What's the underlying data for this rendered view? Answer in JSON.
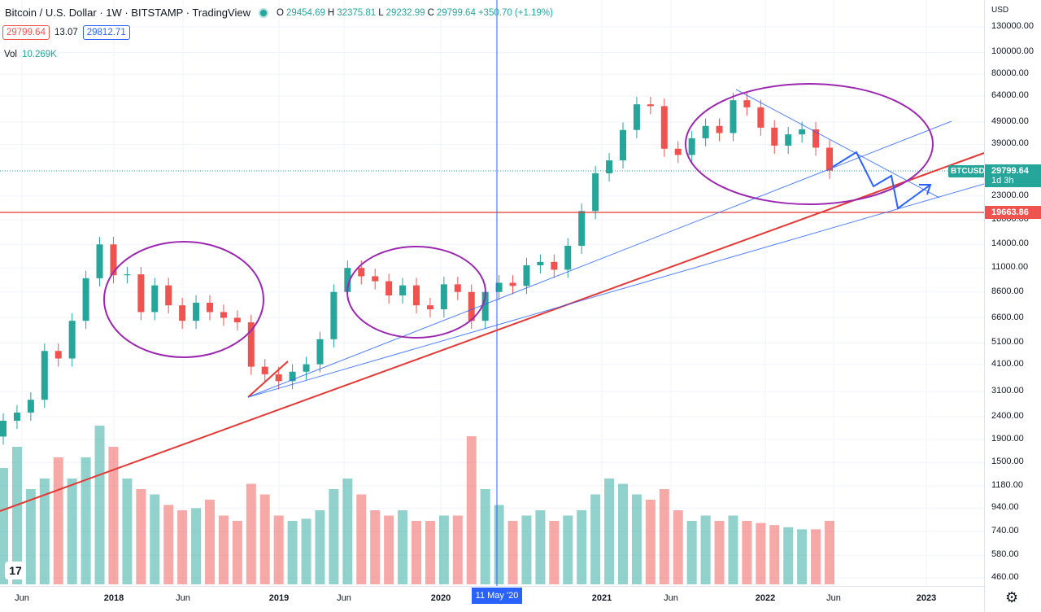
{
  "header": {
    "title": "Bitcoin / U.S. Dollar · 1W · BITSTAMP · TradingView",
    "ohlc": {
      "o_label": "O",
      "o": "29454.69",
      "h_label": "H",
      "h": "32375.81",
      "l_label": "L",
      "l": "29232.99",
      "c_label": "C",
      "c": "29799.64",
      "change": "+350.70 (+1.19%)"
    },
    "sell_price": "29799.64",
    "spread": "13.07",
    "buy_price": "29812.71",
    "vol_label": "Vol",
    "vol_value": "10.269K"
  },
  "price_axis": {
    "currency": "USD",
    "ticks": [
      "130000.00",
      "100000.00",
      "80000.00",
      "64000.00",
      "49000.00",
      "39000.00",
      "23000.00",
      "18000.00",
      "14000.00",
      "11000.00",
      "8600.00",
      "6600.00",
      "5100.00",
      "4100.00",
      "3100.00",
      "2400.00",
      "1900.00",
      "1500.00",
      "1180.00",
      "940.00",
      "740.00",
      "580.00",
      "460.00"
    ],
    "last_price": "29799.64",
    "last_countdown": "1d 3h",
    "level_price": "19663.86",
    "symbol_label": "BTCUSD"
  },
  "time_axis": {
    "ticks": [
      "Jun",
      "2018",
      "Jun",
      "2019",
      "Jun",
      "2020",
      "2021",
      "Jun",
      "2022",
      "Jun",
      "2023"
    ],
    "marker": "11 May '20"
  },
  "colors": {
    "up": "#26a69a",
    "down": "#ef5350",
    "trend_red": "#e53935",
    "trend_blue": "#2962ff",
    "circle": "#9c27b0"
  },
  "icons": {
    "logo": "tradingview-logo-icon",
    "settings": "gear-icon"
  },
  "chart_data": {
    "type": "candlestick",
    "ylim": [
      420,
      150000
    ],
    "y_scale": "log",
    "x": [
      "2017-05",
      "2017-06",
      "2017-07",
      "2017-08",
      "2017-09",
      "2017-10",
      "2017-11",
      "2017-12",
      "2018-01",
      "2018-02",
      "2018-03",
      "2018-04",
      "2018-05",
      "2018-06",
      "2018-07",
      "2018-08",
      "2018-09",
      "2018-10",
      "2018-11",
      "2018-12",
      "2019-01",
      "2019-02",
      "2019-03",
      "2019-04",
      "2019-05",
      "2019-06",
      "2019-07",
      "2019-08",
      "2019-09",
      "2019-10",
      "2019-11",
      "2019-12",
      "2020-01",
      "2020-02",
      "2020-03",
      "2020-04",
      "2020-05",
      "2020-06",
      "2020-07",
      "2020-08",
      "2020-09",
      "2020-10",
      "2020-11",
      "2020-12",
      "2021-01",
      "2021-02",
      "2021-03",
      "2021-04",
      "2021-05",
      "2021-06",
      "2021-07",
      "2021-08",
      "2021-09",
      "2021-10",
      "2021-11",
      "2021-12",
      "2022-01",
      "2022-02",
      "2022-03",
      "2022-04",
      "2022-05"
    ],
    "close": [
      2300,
      2500,
      2850,
      4700,
      4350,
      6400,
      9900,
      14000,
      10200,
      10300,
      7000,
      9200,
      7500,
      6400,
      7700,
      7000,
      6600,
      6300,
      4000,
      3700,
      3450,
      3800,
      4100,
      5300,
      8600,
      11000,
      10100,
      9600,
      8300,
      9200,
      7500,
      7200,
      9300,
      8600,
      6400,
      8600,
      9450,
      9150,
      11300,
      11700,
      10800,
      13800,
      19700,
      29000,
      33100,
      45200,
      58800,
      57700,
      37300,
      35000,
      41500,
      47100,
      43800,
      61300,
      57000,
      46300,
      38500,
      43200,
      45500,
      37700,
      29800
    ],
    "volume": [
      1100,
      1300,
      900,
      1000,
      1200,
      1000,
      1200,
      1500,
      1300,
      1000,
      900,
      850,
      750,
      700,
      720,
      800,
      650,
      600,
      950,
      850,
      650,
      600,
      620,
      700,
      900,
      1000,
      850,
      700,
      650,
      700,
      600,
      600,
      650,
      650,
      1400,
      900,
      750,
      600,
      650,
      700,
      600,
      650,
      700,
      850,
      1000,
      950,
      850,
      800,
      900,
      700,
      600,
      650,
      600,
      650,
      600,
      580,
      560,
      540,
      520,
      520,
      600
    ]
  }
}
